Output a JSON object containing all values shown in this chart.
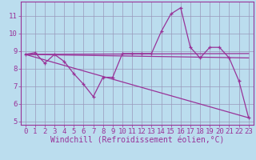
{
  "xlabel": "Windchill (Refroidissement éolien,°C)",
  "bg_color": "#bbddee",
  "line_color": "#993399",
  "grid_color": "#9999bb",
  "xlim": [
    -0.5,
    23.5
  ],
  "ylim": [
    4.8,
    11.8
  ],
  "yticks": [
    5,
    6,
    7,
    8,
    9,
    10,
    11
  ],
  "xticks": [
    0,
    1,
    2,
    3,
    4,
    5,
    6,
    7,
    8,
    9,
    10,
    11,
    12,
    13,
    14,
    15,
    16,
    17,
    18,
    19,
    20,
    21,
    22,
    23
  ],
  "line1_x": [
    0,
    1,
    2,
    3,
    4,
    5,
    6,
    7,
    8,
    9,
    10,
    11,
    12,
    13,
    14,
    15,
    16,
    17,
    18,
    19,
    20,
    21,
    22,
    23
  ],
  "line1_y": [
    8.8,
    8.9,
    8.3,
    8.8,
    8.4,
    7.7,
    7.1,
    6.4,
    7.5,
    7.5,
    8.85,
    8.85,
    8.85,
    8.85,
    10.1,
    11.1,
    11.45,
    9.2,
    8.6,
    9.2,
    9.2,
    8.6,
    7.3,
    5.2
  ],
  "line2_x": [
    0,
    23
  ],
  "line2_y": [
    8.8,
    8.6
  ],
  "line3_x": [
    0,
    23
  ],
  "line3_y": [
    8.8,
    8.85
  ],
  "line4_x": [
    0,
    23
  ],
  "line4_y": [
    8.8,
    5.2
  ],
  "tick_fontsize": 6.5,
  "label_fontsize": 7.0,
  "linewidth": 0.9
}
